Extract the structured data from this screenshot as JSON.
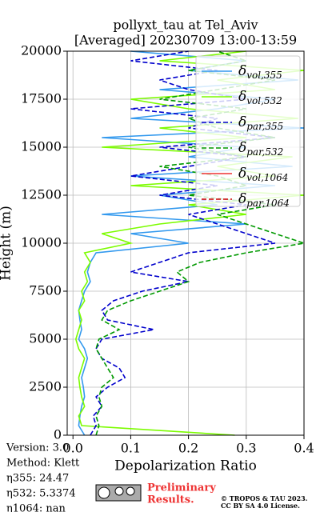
{
  "chart_data": {
    "type": "line",
    "title": [
      "pollyxt_tau at Tel_Aviv",
      "[Averaged] 20230709 13:00-13:59"
    ],
    "xlabel": "Depolarization Ratio",
    "ylabel": "Height (m)",
    "x": [
      0,
      500,
      1000,
      1500,
      2000,
      2500,
      3000,
      3500,
      4000,
      4500,
      5000,
      5500,
      6000,
      6500,
      7000,
      7500,
      8000,
      8500,
      9000,
      9500,
      10000,
      10500,
      11000,
      11500,
      12000,
      12500,
      13000,
      13500,
      14000,
      14500,
      15000,
      15500,
      16000,
      16500,
      17000,
      17500,
      18000,
      18500,
      19000,
      19500,
      20000
    ],
    "series": [
      {
        "name": "δvol,355",
        "color": "#3399ee",
        "dash": false,
        "values": [
          0.02,
          0.01,
          0.012,
          0.015,
          0.02,
          0.018,
          0.015,
          0.02,
          0.025,
          0.02,
          0.01,
          0.015,
          0.012,
          0.01,
          0.015,
          0.02,
          0.03,
          0.025,
          0.03,
          0.04,
          0.2,
          0.1,
          0.3,
          0.05,
          0.25,
          0.15,
          0.35,
          0.1,
          0.38,
          0.2,
          0.3,
          0.05,
          0.4,
          0.1,
          0.25,
          0.35,
          0.15,
          0.39,
          0.2,
          0.3,
          0.1
        ]
      },
      {
        "name": "δvol,532",
        "color": "#7cfc00",
        "dash": false,
        "values": [
          0.28,
          0.015,
          0.01,
          0.02,
          0.015,
          0.012,
          0.01,
          0.015,
          0.02,
          0.01,
          0.005,
          0.01,
          0.015,
          0.01,
          0.02,
          0.015,
          0.025,
          0.02,
          0.03,
          0.02,
          0.1,
          0.05,
          0.15,
          0.3,
          0.2,
          0.4,
          0.1,
          0.35,
          0.25,
          0.38,
          0.05,
          0.3,
          0.15,
          0.39,
          0.2,
          0.1,
          0.35,
          0.25,
          0.4,
          0.15,
          0.3
        ]
      },
      {
        "name": "δpar,355",
        "color": "#0000cc",
        "dash": true,
        "values": [
          0.03,
          0.04,
          0.035,
          0.05,
          0.04,
          0.06,
          0.09,
          0.08,
          0.05,
          0.04,
          0.05,
          0.14,
          0.06,
          0.05,
          0.07,
          0.12,
          0.2,
          0.1,
          0.15,
          0.2,
          0.35,
          0.3,
          0.25,
          0.2,
          0.3,
          0.15,
          0.25,
          0.1,
          0.2,
          0.3,
          0.15,
          0.35,
          0.2,
          0.25,
          0.1,
          0.3,
          0.2,
          0.15,
          0.25,
          0.1,
          0.2
        ]
      },
      {
        "name": "δpar,532",
        "color": "#009900",
        "dash": true,
        "values": [
          0.04,
          0.045,
          0.04,
          0.05,
          0.045,
          0.05,
          0.07,
          0.06,
          0.05,
          0.04,
          0.045,
          0.08,
          0.05,
          0.06,
          0.1,
          0.15,
          0.2,
          0.18,
          0.22,
          0.3,
          0.4,
          0.35,
          0.3,
          0.25,
          0.35,
          0.2,
          0.3,
          0.25,
          0.15,
          0.3,
          0.2,
          0.35,
          0.25,
          0.2,
          0.3,
          0.15,
          0.25,
          0.35,
          0.2,
          0.3,
          0.25
        ]
      },
      {
        "name": "δvol,1064",
        "color": "#ee3333",
        "dash": false,
        "values": [
          null,
          null,
          null,
          null,
          null,
          null,
          null,
          null,
          null,
          null,
          null,
          null,
          null,
          null,
          null,
          null,
          null,
          null,
          null,
          null,
          null,
          null,
          null,
          null,
          null,
          null,
          null,
          null,
          null,
          null,
          null,
          null,
          null,
          null,
          null,
          null,
          null,
          null,
          null,
          null,
          null
        ]
      },
      {
        "name": "δpar,1064",
        "color": "#cc0000",
        "dash": true,
        "values": [
          null,
          null,
          null,
          null,
          null,
          null,
          null,
          null,
          null,
          null,
          null,
          null,
          null,
          null,
          null,
          null,
          null,
          null,
          null,
          null,
          null,
          null,
          null,
          null,
          null,
          null,
          null,
          null,
          null,
          null,
          null,
          null,
          null,
          null,
          null,
          null,
          null,
          null,
          null,
          null,
          null
        ]
      }
    ],
    "xlim": [
      -0.01,
      0.4
    ],
    "ylim": [
      0,
      20000
    ],
    "xticks": [
      {
        "value": 0,
        "label": "0.0"
      },
      0.1,
      0.2,
      0.3,
      0.4
    ],
    "yticks": [
      0,
      2500,
      5000,
      7500,
      10000,
      12500,
      15000,
      17500,
      20000
    ],
    "grid": true,
    "legend": "upper right",
    "info": [
      "Version: 3.0",
      "Method: Klett",
      "η355:  24.47",
      "η532: 5.3374",
      "η1064:    nan"
    ],
    "notice": [
      "Preliminary",
      "Results."
    ],
    "copyright": [
      "© TROPOS & TAU 2023.",
      "CC BY SA 4.0 License."
    ]
  }
}
